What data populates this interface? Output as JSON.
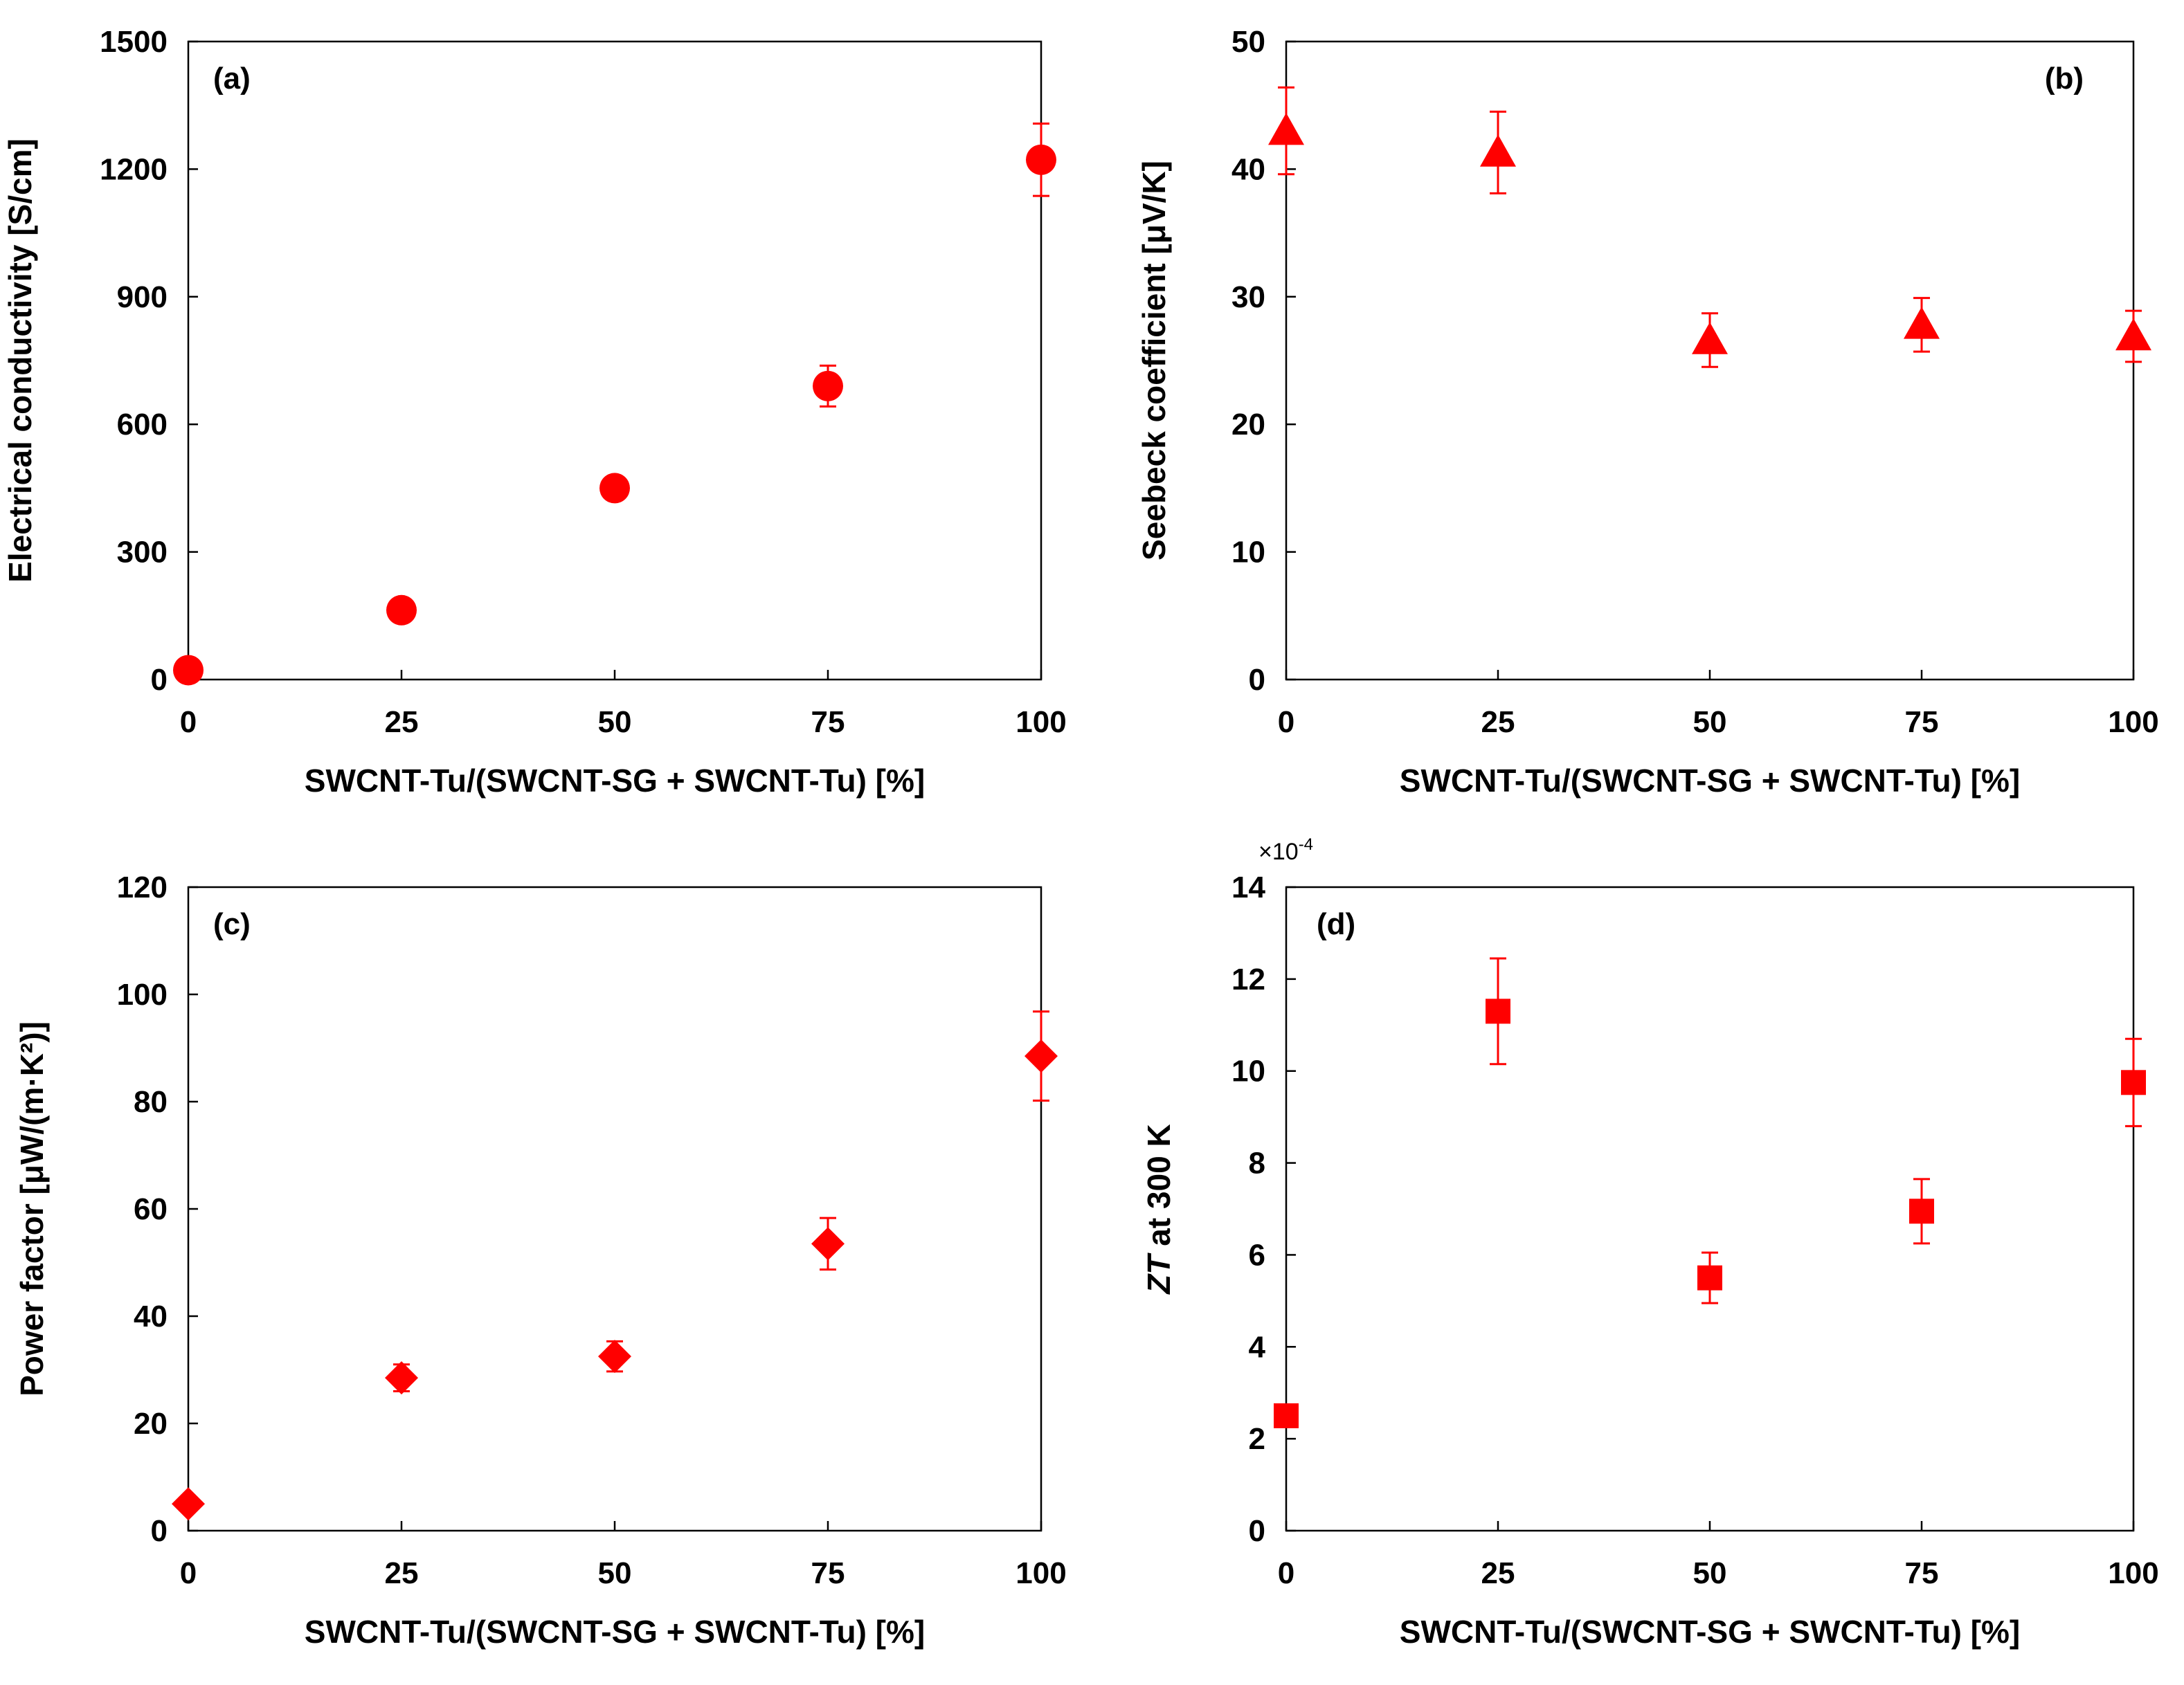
{
  "chart_data": [
    {
      "id": "a",
      "type": "scatter",
      "panel_label": "(a)",
      "xlabel": "SWCNT-Tu/(SWCNT-SG + SWCNT-Tu) [%]",
      "ylabel": "Electrical conductivity [S/cm]",
      "xlim": [
        0,
        100
      ],
      "ylim": [
        0,
        1500
      ],
      "xticks": [
        0,
        25,
        50,
        75,
        100
      ],
      "yticks": [
        0,
        300,
        600,
        900,
        1200,
        1500
      ],
      "marker": "circle",
      "color": "#ff0000",
      "x": [
        0,
        25,
        50,
        75,
        100
      ],
      "y": [
        22,
        163,
        450,
        690,
        1222
      ],
      "yerr": [
        0,
        0,
        0,
        48,
        85
      ]
    },
    {
      "id": "b",
      "type": "scatter",
      "panel_label": "(b)",
      "xlabel": "SWCNT-Tu/(SWCNT-SG + SWCNT-Tu) [%]",
      "ylabel": "Seebeck coefficient [μV/K]",
      "xlim": [
        0,
        100
      ],
      "ylim": [
        0,
        50
      ],
      "xticks": [
        0,
        25,
        50,
        75,
        100
      ],
      "yticks": [
        0,
        10,
        20,
        30,
        40,
        50
      ],
      "marker": "triangle",
      "color": "#ff0000",
      "x": [
        0,
        25,
        50,
        75,
        100
      ],
      "y": [
        43,
        41.3,
        26.6,
        27.8,
        26.9
      ],
      "yerr": [
        3.4,
        3.2,
        2.1,
        2.1,
        2.0
      ]
    },
    {
      "id": "c",
      "type": "scatter",
      "panel_label": "(c)",
      "xlabel": "SWCNT-Tu/(SWCNT-SG + SWCNT-Tu) [%]",
      "ylabel": "Power factor [μW/(m·K²)]",
      "xlim": [
        0,
        100
      ],
      "ylim": [
        0,
        120
      ],
      "xticks": [
        0,
        25,
        50,
        75,
        100
      ],
      "yticks": [
        0,
        20,
        40,
        60,
        80,
        100,
        120
      ],
      "marker": "diamond",
      "color": "#ff0000",
      "x": [
        0,
        25,
        50,
        75,
        100
      ],
      "y": [
        5,
        28.5,
        32.5,
        53.5,
        88.5
      ],
      "yerr": [
        0,
        2.5,
        2.8,
        4.8,
        8.3
      ]
    },
    {
      "id": "d",
      "type": "scatter",
      "panel_label": "(d)",
      "xlabel": "SWCNT-Tu/(SWCNT-SG + SWCNT-Tu) [%]",
      "ylabel_italic": "ZT",
      "ylabel_rest": " at 300 K",
      "multiplier_base": "×10",
      "multiplier_exp": "-4",
      "xlim": [
        0,
        100
      ],
      "ylim": [
        0,
        14
      ],
      "xticks": [
        0,
        25,
        50,
        75,
        100
      ],
      "yticks": [
        0,
        2,
        4,
        6,
        8,
        10,
        12,
        14
      ],
      "marker": "square",
      "color": "#ff0000",
      "x": [
        0,
        25,
        50,
        75,
        100
      ],
      "y": [
        2.5,
        11.3,
        5.5,
        6.95,
        9.75
      ],
      "yerr": [
        0,
        1.15,
        0.55,
        0.7,
        0.95
      ]
    }
  ]
}
